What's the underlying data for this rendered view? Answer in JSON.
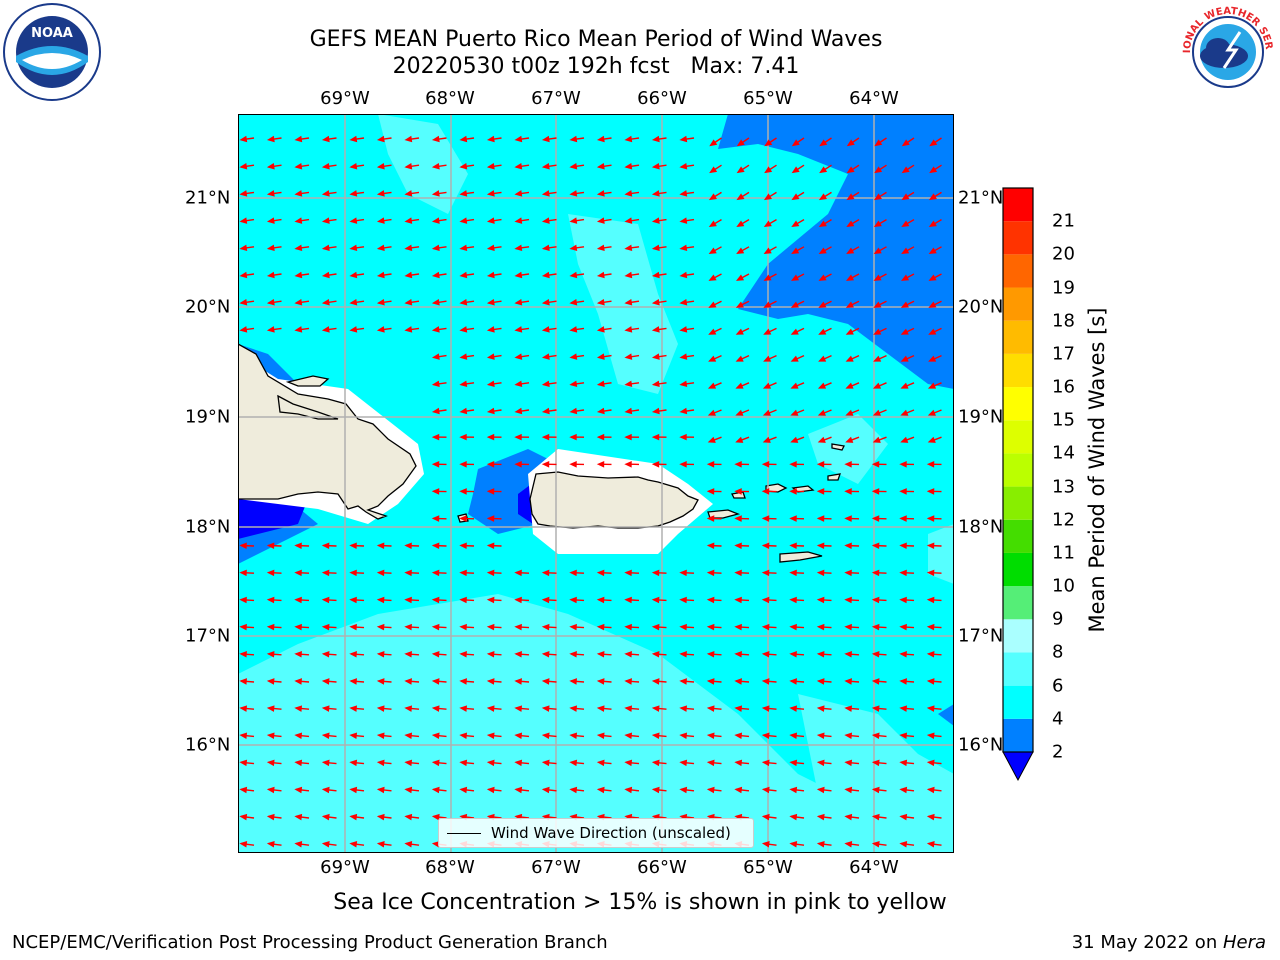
{
  "title": {
    "line1": "GEFS MEAN Puerto Rico Mean Period of Wind Waves",
    "line2": "20220530 t00z 192h fcst   Max: 7.41"
  },
  "map": {
    "lon_labels": [
      "69°W",
      "68°W",
      "67°W",
      "66°W",
      "65°W",
      "64°W"
    ],
    "lat_labels": [
      "21°N",
      "20°N",
      "19°N",
      "18°N",
      "17°N",
      "16°N"
    ],
    "legend_label": "Wind Wave Direction (unscaled)",
    "ocean_color": "#00ffff",
    "light_band_color": "#55ffff",
    "deep_band_color": "#0080ff",
    "land_color": "#efecdc",
    "arrow_color": "#ff0000"
  },
  "colorbar": {
    "title": "Mean Period of Wind Waves [s]",
    "levels": [
      "2",
      "4",
      "6",
      "8",
      "9",
      "10",
      "11",
      "12",
      "13",
      "14",
      "15",
      "16",
      "17",
      "18",
      "19",
      "20",
      "21"
    ],
    "colors": [
      "#0080ff",
      "#00ffff",
      "#55ffff",
      "#aaffff",
      "#55ee77",
      "#00dd00",
      "#44dd00",
      "#88ee00",
      "#bbff00",
      "#ddff00",
      "#ffff00",
      "#ffdd00",
      "#ffbb00",
      "#ff9900",
      "#ff6600",
      "#ff3300",
      "#ff0000"
    ],
    "extend_color": "#0000ff"
  },
  "logos": {
    "noaa_text": "NOAA",
    "nws_text": "NATIONAL WEATHER SERVICE"
  },
  "notes": {
    "ice": "Sea Ice Concentration > 15% is shown in pink to yellow",
    "footer_left": "NCEP/EMC/Verification Post Processing Product Generation Branch",
    "footer_date": "31 May 2022 on ",
    "footer_host": "Hera"
  }
}
